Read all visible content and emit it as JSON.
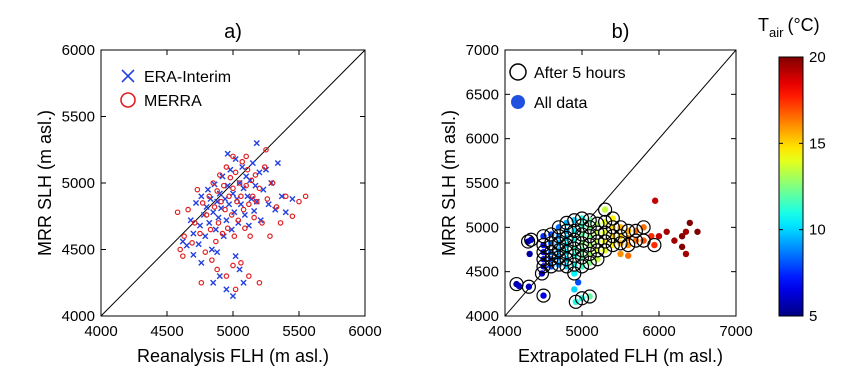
{
  "chart_data": [
    {
      "type": "scatter",
      "title": "a)",
      "xlabel": "Reanalysis FLH (m asl.)",
      "ylabel": "MRR SLH (m asl.)",
      "xlim": [
        4000,
        6000
      ],
      "ylim": [
        4000,
        6000
      ],
      "xticks": [
        "4000",
        "4500",
        "5000",
        "5500",
        "6000"
      ],
      "yticks": [
        "4000",
        "4500",
        "5000",
        "5500",
        "6000"
      ],
      "reference_line": "1:1",
      "legend_position": "top-left",
      "series": [
        {
          "name": "ERA-Interim",
          "marker": "x",
          "color": "#2340e0",
          "points": [
            [
              4620,
              4560
            ],
            [
              4650,
              4530
            ],
            [
              4680,
              4720
            ],
            [
              4700,
              4620
            ],
            [
              4720,
              4850
            ],
            [
              4740,
              4540
            ],
            [
              4750,
              4680
            ],
            [
              4760,
              4900
            ],
            [
              4780,
              4760
            ],
            [
              4790,
              4600
            ],
            [
              4800,
              4820
            ],
            [
              4810,
              4950
            ],
            [
              4820,
              4700
            ],
            [
              4830,
              4880
            ],
            [
              4840,
              4500
            ],
            [
              4850,
              4780
            ],
            [
              4860,
              4990
            ],
            [
              4870,
              4650
            ],
            [
              4880,
              4860
            ],
            [
              4890,
              4740
            ],
            [
              4900,
              4920
            ],
            [
              4910,
              4810
            ],
            [
              4920,
              5050
            ],
            [
              4930,
              4600
            ],
            [
              4940,
              4880
            ],
            [
              4950,
              4720
            ],
            [
              4960,
              4980
            ],
            [
              4970,
              4840
            ],
            [
              4980,
              5100
            ],
            [
              4990,
              4650
            ],
            [
              5000,
              4920
            ],
            [
              5010,
              4780
            ],
            [
              5020,
              5180
            ],
            [
              5030,
              4880
            ],
            [
              5040,
              4700
            ],
            [
              5050,
              5000
            ],
            [
              5060,
              4840
            ],
            [
              5070,
              5120
            ],
            [
              5080,
              4960
            ],
            [
              5090,
              4760
            ],
            [
              5100,
              5050
            ],
            [
              5110,
              4900
            ],
            [
              5120,
              4680
            ],
            [
              5130,
              5020
            ],
            [
              5140,
              4880
            ],
            [
              5150,
              5150
            ],
            [
              5160,
              4790
            ],
            [
              5170,
              4980
            ],
            [
              5180,
              4860
            ],
            [
              5200,
              5080
            ],
            [
              5210,
              4720
            ],
            [
              5230,
              4950
            ],
            [
              5250,
              5100
            ],
            [
              5270,
              4840
            ],
            [
              5290,
              5000
            ],
            [
              5320,
              4800
            ],
            [
              5340,
              5150
            ],
            [
              5370,
              4900
            ],
            [
              5400,
              4780
            ],
            [
              5450,
              4880
            ],
            [
              4900,
              4300
            ],
            [
              4950,
              4200
            ],
            [
              5000,
              4150
            ],
            [
              5050,
              4350
            ],
            [
              4850,
              4250
            ],
            [
              5080,
              4250
            ],
            [
              4700,
              4460
            ],
            [
              4880,
              4480
            ],
            [
              5020,
              4450
            ],
            [
              4960,
              5220
            ],
            [
              5180,
              5300
            ],
            [
              4760,
              4400
            ]
          ]
        },
        {
          "name": "MERRA",
          "marker": "o",
          "color": "#e02020",
          "points": [
            [
              4600,
              4500
            ],
            [
              4630,
              4600
            ],
            [
              4660,
              4800
            ],
            [
              4690,
              4550
            ],
            [
              4710,
              4700
            ],
            [
              4730,
              4950
            ],
            [
              4750,
              4620
            ],
            [
              4770,
              4850
            ],
            [
              4790,
              4480
            ],
            [
              4800,
              4760
            ],
            [
              4820,
              4900
            ],
            [
              4830,
              4650
            ],
            [
              4850,
              5000
            ],
            [
              4860,
              4820
            ],
            [
              4870,
              4560
            ],
            [
              4880,
              4940
            ],
            [
              4890,
              4700
            ],
            [
              4900,
              5060
            ],
            [
              4910,
              4860
            ],
            [
              4920,
              4620
            ],
            [
              4930,
              4980
            ],
            [
              4940,
              4800
            ],
            [
              4950,
              5120
            ],
            [
              4960,
              4660
            ],
            [
              4970,
              4900
            ],
            [
              4980,
              5040
            ],
            [
              4990,
              4760
            ],
            [
              5000,
              4960
            ],
            [
              5010,
              4600
            ],
            [
              5020,
              5080
            ],
            [
              5030,
              4860
            ],
            [
              5040,
              4720
            ],
            [
              5050,
              5000
            ],
            [
              5060,
              4900
            ],
            [
              5070,
              5160
            ],
            [
              5080,
              4800
            ],
            [
              5090,
              4660
            ],
            [
              5100,
              4980
            ],
            [
              5110,
              5100
            ],
            [
              5120,
              4840
            ],
            [
              5130,
              4600
            ],
            [
              5140,
              5020
            ],
            [
              5150,
              4900
            ],
            [
              5160,
              4740
            ],
            [
              5170,
              5060
            ],
            [
              5180,
              4860
            ],
            [
              5200,
              4960
            ],
            [
              5220,
              4700
            ],
            [
              5240,
              5120
            ],
            [
              5260,
              4880
            ],
            [
              5280,
              4600
            ],
            [
              5300,
              5000
            ],
            [
              5330,
              4820
            ],
            [
              5360,
              4700
            ],
            [
              5400,
              4900
            ],
            [
              5450,
              4750
            ],
            [
              5500,
              4860
            ],
            [
              5550,
              4900
            ],
            [
              4580,
              4780
            ],
            [
              4620,
              4450
            ],
            [
              4880,
              4350
            ],
            [
              4950,
              4300
            ],
            [
              5020,
              4200
            ],
            [
              5060,
              4400
            ],
            [
              5120,
              4300
            ],
            [
              5200,
              4250
            ],
            [
              4760,
              4250
            ],
            [
              4840,
              4420
            ],
            [
              5000,
              4380
            ],
            [
              5100,
              5200
            ],
            [
              5000,
              5200
            ],
            [
              5250,
              5250
            ]
          ]
        }
      ]
    },
    {
      "type": "scatter",
      "title": "b)",
      "xlabel": "Extrapolated FLH (m asl.)",
      "ylabel": "MRR SLH (m asl.)",
      "xlim": [
        4000,
        7000
      ],
      "ylim": [
        4000,
        7000
      ],
      "xticks": [
        "4000",
        "5000",
        "6000",
        "7000"
      ],
      "yticks": [
        "4000",
        "4500",
        "5000",
        "5500",
        "6000",
        "6500",
        "7000"
      ],
      "reference_line": "1:1",
      "legend_position": "top-left",
      "legend": [
        {
          "name": "After 5 hours",
          "marker": "open-circle"
        },
        {
          "name": "All data",
          "marker": "filled-circle",
          "color": "#2050e0"
        }
      ],
      "colorbar": {
        "title_main": "T",
        "title_sub": "air",
        "title_unit": "(°C)",
        "min": 5,
        "max": 20,
        "ticks": [
          "5",
          "10",
          "15",
          "20"
        ]
      },
      "points": [
        [
          4150,
          4360,
          5.5,
          true
        ],
        [
          4180,
          4340,
          6.0,
          false
        ],
        [
          4300,
          4840,
          5.5,
          true
        ],
        [
          4310,
          4330,
          6.0,
          true
        ],
        [
          4320,
          4700,
          5.5,
          false
        ],
        [
          4340,
          4860,
          6.0,
          true
        ],
        [
          4500,
          4230,
          6.5,
          true
        ],
        [
          4480,
          4480,
          6.0,
          true
        ],
        [
          4500,
          4560,
          6.5,
          true
        ],
        [
          4500,
          4640,
          6.5,
          true
        ],
        [
          4500,
          4720,
          7.0,
          true
        ],
        [
          4500,
          4800,
          7.0,
          true
        ],
        [
          4500,
          4900,
          7.5,
          true
        ],
        [
          4600,
          4560,
          8.0,
          true
        ],
        [
          4600,
          4640,
          8.0,
          true
        ],
        [
          4600,
          4720,
          8.5,
          true
        ],
        [
          4600,
          4820,
          8.5,
          true
        ],
        [
          4600,
          4920,
          8.0,
          true
        ],
        [
          4700,
          4580,
          9.0,
          true
        ],
        [
          4700,
          4660,
          9.0,
          true
        ],
        [
          4700,
          4740,
          9.5,
          true
        ],
        [
          4700,
          4820,
          9.5,
          true
        ],
        [
          4700,
          4900,
          9.0,
          true
        ],
        [
          4700,
          5000,
          8.5,
          true
        ],
        [
          4800,
          4560,
          10.0,
          true
        ],
        [
          4800,
          4640,
          10.0,
          true
        ],
        [
          4800,
          4720,
          10.5,
          true
        ],
        [
          4800,
          4800,
          10.5,
          true
        ],
        [
          4800,
          4880,
          10.0,
          true
        ],
        [
          4800,
          4960,
          9.5,
          true
        ],
        [
          4800,
          5050,
          9.5,
          true
        ],
        [
          4900,
          4300,
          10.0,
          false
        ],
        [
          4920,
          4160,
          11.0,
          true
        ],
        [
          4900,
          4480,
          10.5,
          true
        ],
        [
          4900,
          4580,
          11.0,
          true
        ],
        [
          4900,
          4680,
          11.0,
          true
        ],
        [
          4900,
          4760,
          11.5,
          true
        ],
        [
          4900,
          4860,
          11.0,
          true
        ],
        [
          4900,
          4960,
          10.5,
          true
        ],
        [
          4900,
          5080,
          10.0,
          true
        ],
        [
          5000,
          4200,
          11.0,
          true
        ],
        [
          5000,
          4560,
          11.5,
          true
        ],
        [
          5000,
          4660,
          12.0,
          true
        ],
        [
          5000,
          4740,
          12.0,
          true
        ],
        [
          5000,
          4820,
          12.5,
          true
        ],
        [
          5000,
          4920,
          12.0,
          true
        ],
        [
          5000,
          5020,
          11.5,
          true
        ],
        [
          5000,
          5100,
          11.0,
          true
        ],
        [
          5100,
          4220,
          12.0,
          true
        ],
        [
          5100,
          4600,
          12.5,
          true
        ],
        [
          5100,
          4700,
          13.0,
          true
        ],
        [
          5100,
          4800,
          13.0,
          true
        ],
        [
          5100,
          4900,
          12.5,
          true
        ],
        [
          5100,
          5000,
          12.5,
          true
        ],
        [
          5100,
          5080,
          12.0,
          true
        ],
        [
          5200,
          4640,
          13.5,
          true
        ],
        [
          5200,
          4740,
          14.0,
          true
        ],
        [
          5200,
          4840,
          13.5,
          true
        ],
        [
          5200,
          4940,
          13.5,
          true
        ],
        [
          5200,
          5040,
          13.0,
          true
        ],
        [
          5300,
          4740,
          14.0,
          true
        ],
        [
          5300,
          4840,
          14.5,
          true
        ],
        [
          5300,
          4940,
          14.0,
          true
        ],
        [
          5300,
          5060,
          14.0,
          true
        ],
        [
          5300,
          5200,
          13.5,
          true
        ],
        [
          5400,
          4800,
          14.5,
          true
        ],
        [
          5400,
          4900,
          15.0,
          true
        ],
        [
          5400,
          5000,
          15.0,
          true
        ],
        [
          5400,
          5100,
          14.5,
          true
        ],
        [
          5500,
          4820,
          15.5,
          true
        ],
        [
          5500,
          4900,
          15.0,
          true
        ],
        [
          5500,
          5000,
          15.5,
          true
        ],
        [
          5600,
          4800,
          16.0,
          true
        ],
        [
          5600,
          4880,
          16.0,
          false
        ],
        [
          5600,
          4960,
          15.5,
          true
        ],
        [
          5700,
          4850,
          16.5,
          true
        ],
        [
          5700,
          4960,
          16.5,
          true
        ],
        [
          5800,
          4850,
          17.0,
          true
        ],
        [
          5800,
          5000,
          16.5,
          true
        ],
        [
          5500,
          4700,
          16.0,
          false
        ],
        [
          5600,
          4680,
          16.5,
          false
        ],
        [
          5900,
          4900,
          17.5,
          false
        ],
        [
          5940,
          4800,
          17.5,
          true
        ],
        [
          5950,
          5300,
          19.0,
          false
        ],
        [
          6000,
          4900,
          19.0,
          false
        ],
        [
          6100,
          4950,
          19.5,
          false
        ],
        [
          6200,
          4850,
          19.5,
          false
        ],
        [
          6300,
          4780,
          20.0,
          false
        ],
        [
          6300,
          4900,
          20.0,
          false
        ],
        [
          6350,
          4950,
          19.5,
          false
        ],
        [
          6400,
          5050,
          20.0,
          false
        ],
        [
          6500,
          4950,
          20.0,
          false
        ],
        [
          6350,
          4700,
          19.5,
          false
        ],
        [
          4950,
          4380,
          8.0,
          false
        ]
      ]
    }
  ]
}
